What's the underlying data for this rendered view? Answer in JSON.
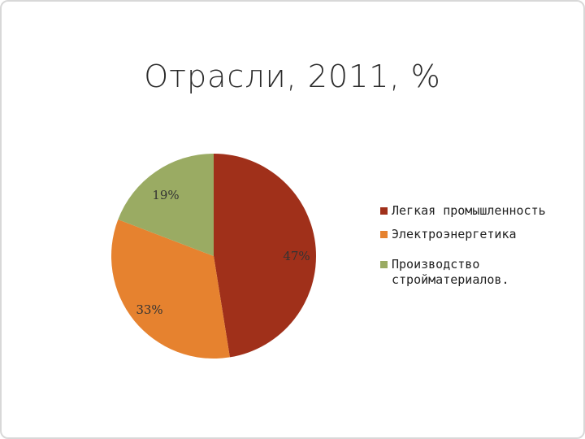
{
  "chart_data": {
    "type": "pie",
    "title": "Отрасли, 2011, %",
    "legend_position": "right",
    "slices": [
      {
        "label": "Легкая промышленность",
        "value": 47,
        "display": "47%",
        "color": "#a0301a"
      },
      {
        "label": "Электроэнергетика",
        "value": 33,
        "display": "33%",
        "color": "#e6822f"
      },
      {
        "label": "Производство стройматериалов.",
        "value": 19,
        "display": "19%",
        "color": "#9aab63"
      }
    ]
  }
}
